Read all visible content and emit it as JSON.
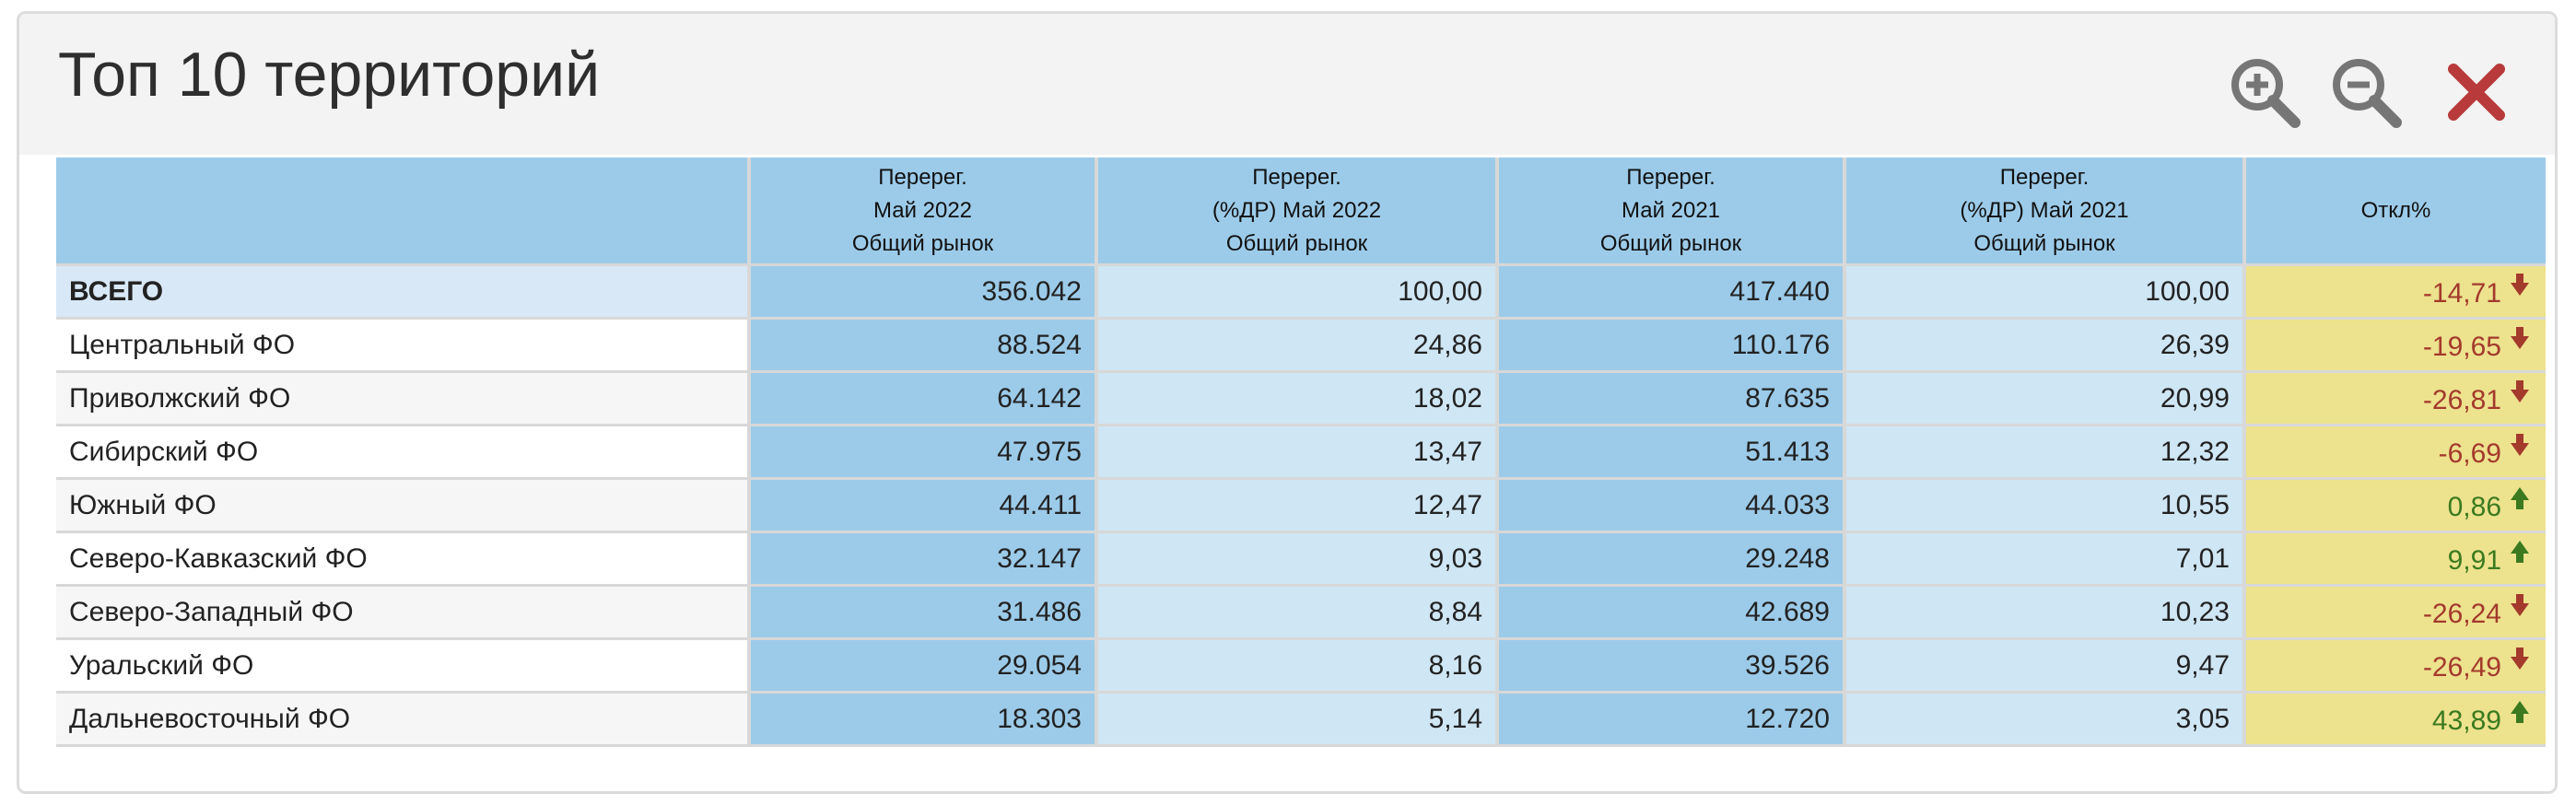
{
  "title": "Топ 10 территорий",
  "toolbar": {
    "zoom_in_icon": "zoom-in-icon",
    "zoom_out_icon": "zoom-out-icon",
    "close_icon": "close-icon"
  },
  "colors": {
    "header_bg": "#9ccbe9",
    "dark_col": "#9ccbe9",
    "light_col": "#cfe6f4",
    "deviation_bg": "#ede28e",
    "negative": "#a33a2c",
    "positive": "#3b7a1f",
    "close": "#b83a3a"
  },
  "table": {
    "columns": [
      "",
      "Перерег.\nМай 2022\nОбщий рынок",
      "Перерег.\n(%ДР) Май 2022\nОбщий рынок",
      "Перерег.\nМай 2021\nОбщий рынок",
      "Перерег.\n(%ДР) Май 2021\nОбщий рынок",
      "Откл%"
    ],
    "rows": [
      {
        "name": "ВСЕГО",
        "v1": "356.042",
        "v2": "100,00",
        "v3": "417.440",
        "v4": "100,00",
        "dev": "-14,71",
        "trend": "down"
      },
      {
        "name": "Центральный ФО",
        "v1": "88.524",
        "v2": "24,86",
        "v3": "110.176",
        "v4": "26,39",
        "dev": "-19,65",
        "trend": "down"
      },
      {
        "name": "Приволжский ФО",
        "v1": "64.142",
        "v2": "18,02",
        "v3": "87.635",
        "v4": "20,99",
        "dev": "-26,81",
        "trend": "down"
      },
      {
        "name": "Сибирский ФО",
        "v1": "47.975",
        "v2": "13,47",
        "v3": "51.413",
        "v4": "12,32",
        "dev": "-6,69",
        "trend": "down"
      },
      {
        "name": "Южный ФО",
        "v1": "44.411",
        "v2": "12,47",
        "v3": "44.033",
        "v4": "10,55",
        "dev": "0,86",
        "trend": "up"
      },
      {
        "name": "Северо-Кавказский ФО",
        "v1": "32.147",
        "v2": "9,03",
        "v3": "29.248",
        "v4": "7,01",
        "dev": "9,91",
        "trend": "up"
      },
      {
        "name": "Северо-Западный ФО",
        "v1": "31.486",
        "v2": "8,84",
        "v3": "42.689",
        "v4": "10,23",
        "dev": "-26,24",
        "trend": "down"
      },
      {
        "name": "Уральский ФО",
        "v1": "29.054",
        "v2": "8,16",
        "v3": "39.526",
        "v4": "9,47",
        "dev": "-26,49",
        "trend": "down"
      },
      {
        "name": "Дальневосточный ФО",
        "v1": "18.303",
        "v2": "5,14",
        "v3": "12.720",
        "v4": "3,05",
        "dev": "43,89",
        "trend": "up"
      }
    ]
  }
}
